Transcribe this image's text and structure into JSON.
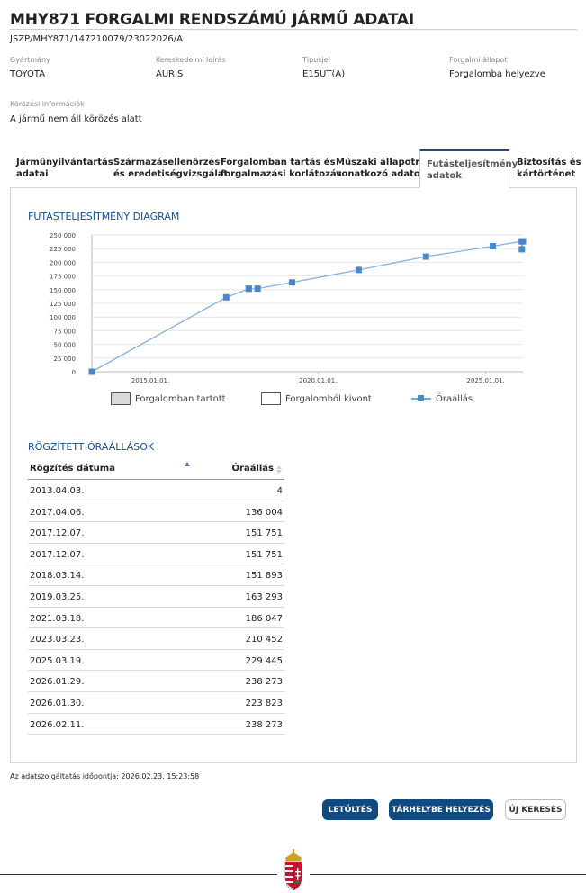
{
  "page": {
    "title": "MHY871 FORGALMI RENDSZÁMÚ JÁRMŰ ADATAI",
    "doc_id": "JSZP/MHY871/147210079/23022026/A"
  },
  "fields": [
    {
      "label": "Gyártmány",
      "value": "TOYOTA"
    },
    {
      "label": "Kereskedelmi leírás",
      "value": "AURIS"
    },
    {
      "label": "Típusjel",
      "value": "E15UT(A)"
    },
    {
      "label": "Forgalmi állapot",
      "value": "Forgalomba helyezve"
    }
  ],
  "circulation": {
    "label": "Körözési információk",
    "value": "A jármű nem áll körözés alatt"
  },
  "tabs": [
    {
      "line1": "Járműnyilvántartás",
      "line2": "adatai"
    },
    {
      "line1": "Származásellenőrzés",
      "line2": "és eredetiségvizsgálat"
    },
    {
      "line1": "Forgalomban tartás és",
      "line2": "forgalmazási korlátozás"
    },
    {
      "line1": "Műszaki állapotra",
      "line2": "vonatkozó adatok"
    },
    {
      "line1": "Futásteljesítmény",
      "line2": "adatok"
    },
    {
      "line1": "Biztosítás és",
      "line2": "kártörténet"
    }
  ],
  "diagram": {
    "heading": "FUTÁSTELJESÍTMÉNY DIAGRAM"
  },
  "chart_data": {
    "type": "line",
    "title": "",
    "xlabel": "",
    "ylabel": "",
    "ylim": [
      0,
      250000
    ],
    "y_ticks": [
      "250 000",
      "225 000",
      "200 000",
      "175 000",
      "150 000",
      "125 000",
      "100 000",
      "75 000",
      "50 000",
      "25 000",
      "0"
    ],
    "x_ticks": [
      "2015.01.01.",
      "2020.01.01.",
      "2025.01.01."
    ],
    "grid": "horizontal",
    "legend": [
      "Forgalomban tartott",
      "Forgalomból kivont",
      "Óraállás"
    ],
    "series": [
      {
        "name": "Óraállás",
        "color": "#4a87c8",
        "points": [
          {
            "x": "2013.04.03.",
            "y": 4
          },
          {
            "x": "2017.04.06.",
            "y": 136004
          },
          {
            "x": "2017.12.07.",
            "y": 151751
          },
          {
            "x": "2017.12.07.",
            "y": 151751
          },
          {
            "x": "2018.03.14.",
            "y": 151893
          },
          {
            "x": "2019.03.25.",
            "y": 163293
          },
          {
            "x": "2021.03.18.",
            "y": 186047
          },
          {
            "x": "2023.03.23.",
            "y": 210452
          },
          {
            "x": "2025.03.19.",
            "y": 229445
          },
          {
            "x": "2026.01.29.",
            "y": 238273
          },
          {
            "x": "2026.01.30.",
            "y": 223823
          },
          {
            "x": "2026.02.11.",
            "y": 238273
          }
        ]
      }
    ]
  },
  "readings": {
    "heading": "RÖGZÍTETT ÓRAÁLLÁSOK",
    "col_date": "Rögzítés dátuma",
    "col_value": "Óraállás",
    "rows": [
      {
        "date": "2013.04.03.",
        "value": "4"
      },
      {
        "date": "2017.04.06.",
        "value": "136 004"
      },
      {
        "date": "2017.12.07.",
        "value": "151 751"
      },
      {
        "date": "2017.12.07.",
        "value": "151 751"
      },
      {
        "date": "2018.03.14.",
        "value": "151 893"
      },
      {
        "date": "2019.03.25.",
        "value": "163 293"
      },
      {
        "date": "2021.03.18.",
        "value": "186 047"
      },
      {
        "date": "2023.03.23.",
        "value": "210 452"
      },
      {
        "date": "2025.03.19.",
        "value": "229 445"
      },
      {
        "date": "2026.01.29.",
        "value": "238 273"
      },
      {
        "date": "2026.01.30.",
        "value": "223 823"
      },
      {
        "date": "2026.02.11.",
        "value": "238 273"
      }
    ]
  },
  "timestamp": "Az adatszolgáltatás időpontja: 2026.02.23. 15:23:58",
  "buttons": {
    "download": "LETÖLTÉS",
    "store": "TÁRHELYBE HELYEZÉS",
    "new_search": "ÚJ KERESÉS"
  },
  "colors": {
    "accent": "#114a80",
    "series": "#4a87c8"
  }
}
